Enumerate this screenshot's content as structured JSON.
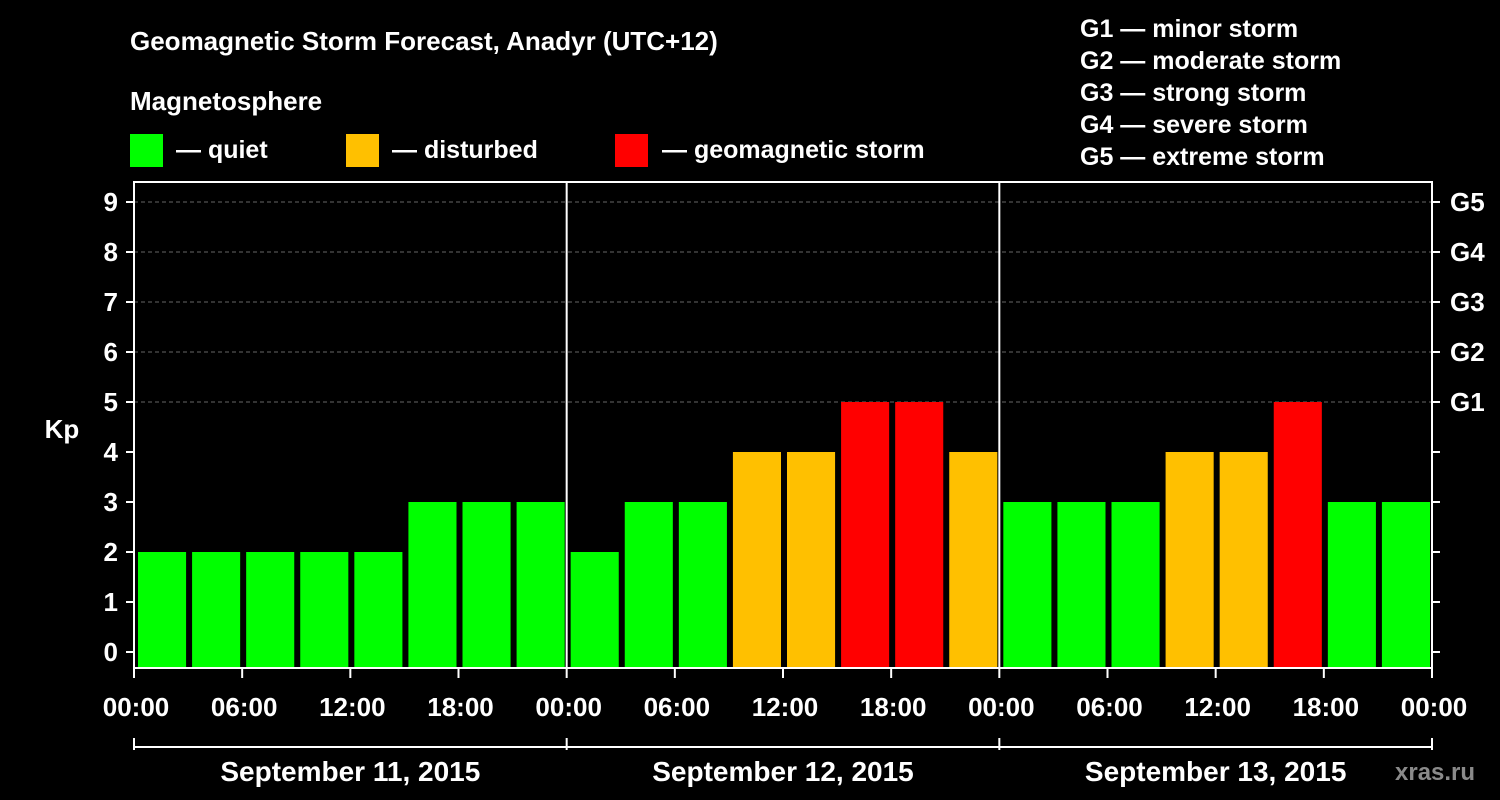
{
  "chart_data": {
    "type": "bar",
    "title": "Geomagnetic Storm Forecast, Anadyr (UTC+12)",
    "subtitle": "Magnetosphere",
    "ylabel": "Kp",
    "ylim": [
      0,
      9
    ],
    "yticks": [
      "0",
      "1",
      "2",
      "3",
      "4",
      "5",
      "6",
      "7",
      "8",
      "9"
    ],
    "right_ticks": [
      {
        "kp": 5,
        "label": "G1"
      },
      {
        "kp": 6,
        "label": "G2"
      },
      {
        "kp": 7,
        "label": "G3"
      },
      {
        "kp": 8,
        "label": "G4"
      },
      {
        "kp": 9,
        "label": "G5"
      }
    ],
    "x_tick_labels": [
      "00:00",
      "06:00",
      "12:00",
      "18:00",
      "00:00",
      "06:00",
      "12:00",
      "18:00",
      "00:00",
      "06:00",
      "12:00",
      "18:00",
      "00:00"
    ],
    "days": [
      "September 11, 2015",
      "September 12, 2015",
      "September 13, 2015"
    ],
    "values": [
      2,
      2,
      2,
      2,
      2,
      3,
      3,
      3,
      2,
      3,
      3,
      4,
      4,
      5,
      5,
      4,
      3,
      3,
      3,
      4,
      4,
      5,
      3,
      3
    ],
    "legend": [
      {
        "label": "— quiet",
        "color": "#00ff00"
      },
      {
        "label": "— disturbed",
        "color": "#ffc000"
      },
      {
        "label": "— geomagnetic storm",
        "color": "#ff0000"
      }
    ],
    "storm_scale": [
      "G1 — minor storm",
      "G2 — moderate storm",
      "G3 — strong storm",
      "G4 — severe storm",
      "G5 — extreme storm"
    ],
    "colors": {
      "quiet": "#00ff00",
      "disturbed": "#ffc000",
      "storm": "#ff0000",
      "grid": "#666666",
      "axis": "#ffffff"
    },
    "watermark": "xras.ru"
  }
}
